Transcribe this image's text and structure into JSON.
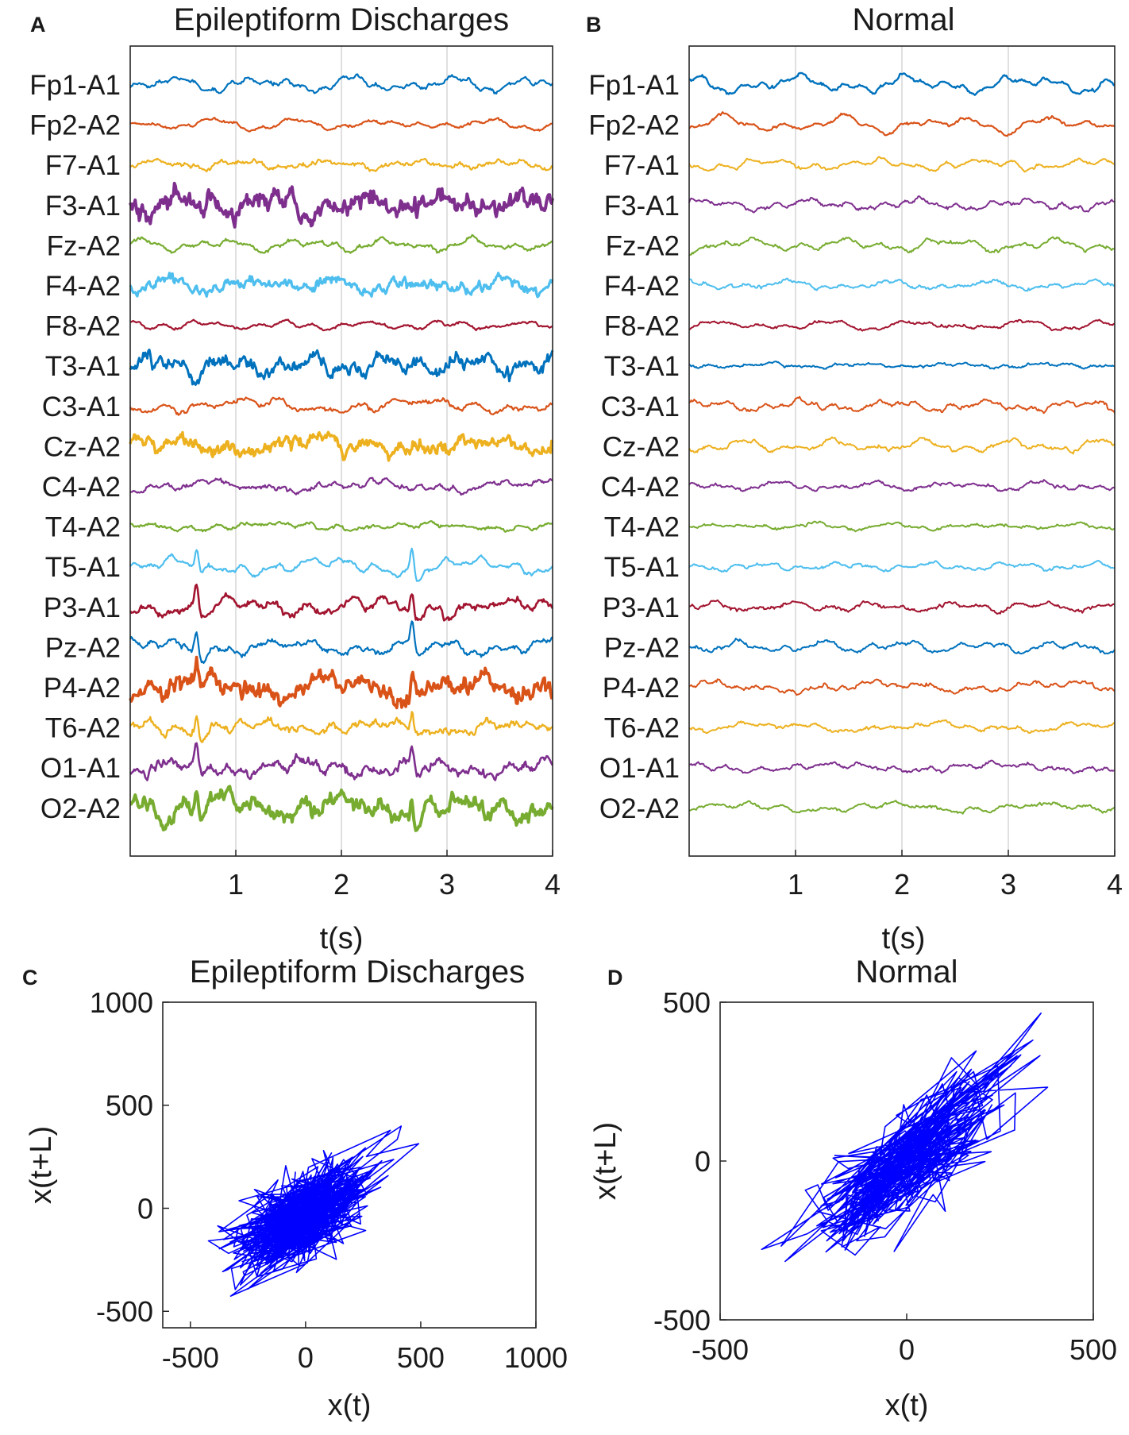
{
  "figure": {
    "panel_labels": [
      "A",
      "B",
      "C",
      "D"
    ]
  },
  "colors": {
    "axis": "#262626",
    "grid": "#d0d0d0",
    "scatter_line": "#0000ff",
    "channel_palette": [
      "#0072bd",
      "#d95319",
      "#edb120",
      "#7e2f8e",
      "#77ac30",
      "#4dbeee",
      "#a2142f"
    ]
  },
  "chart_data": [
    {
      "id": "A",
      "type": "line",
      "title": "Epileptiform Discharges",
      "xlabel": "t(s)",
      "ylabel": "",
      "xlim": [
        0,
        4
      ],
      "xticks": [
        "1",
        "2",
        "3",
        "4"
      ],
      "grid": "vertical",
      "channels": [
        "Fp1-A1",
        "Fp2-A2",
        "F7-A1",
        "F3-A1",
        "Fz-A2",
        "F4-A2",
        "F8-A2",
        "T3-A1",
        "C3-A1",
        "Cz-A2",
        "C4-A2",
        "T4-A2",
        "T5-A1",
        "P3-A1",
        "Pz-A2",
        "P4-A2",
        "T6-A2",
        "O1-A1",
        "O2-A2"
      ],
      "channel_amplitude": [
        1.0,
        0.7,
        0.55,
        1.5,
        0.8,
        0.9,
        0.55,
        1.2,
        0.9,
        1.0,
        0.8,
        0.5,
        1.1,
        1.0,
        1.0,
        1.4,
        0.9,
        1.1,
        1.6
      ],
      "channel_noise": [
        0.4,
        0.3,
        0.5,
        2.2,
        0.4,
        1.2,
        0.3,
        1.6,
        0.5,
        1.4,
        0.5,
        0.4,
        0.4,
        0.8,
        0.6,
        1.8,
        0.8,
        1.0,
        1.8
      ],
      "channel_stroke": [
        2.2,
        2.2,
        2.2,
        4.0,
        2.2,
        3.2,
        2.2,
        3.0,
        2.2,
        3.5,
        2.2,
        2.2,
        2.2,
        2.6,
        2.2,
        3.8,
        2.4,
        2.6,
        4.0
      ],
      "spike_times_s": [
        0.63,
        2.67
      ],
      "spike_channels": [
        "T5-A1",
        "P3-A1",
        "Pz-A2",
        "P4-A2",
        "T6-A2",
        "O1-A1",
        "O2-A2"
      ]
    },
    {
      "id": "B",
      "type": "line",
      "title": "Normal",
      "xlabel": "t(s)",
      "ylabel": "",
      "xlim": [
        0,
        4
      ],
      "xticks": [
        "1",
        "2",
        "3",
        "4"
      ],
      "grid": "vertical",
      "channels": [
        "Fp1-A1",
        "Fp2-A2",
        "F7-A1",
        "F3-A1",
        "Fz-A2",
        "F4-A2",
        "F8-A2",
        "T3-A1",
        "C3-A1",
        "Cz-A2",
        "C4-A2",
        "T4-A2",
        "T5-A1",
        "P3-A1",
        "Pz-A2",
        "P4-A2",
        "T6-A2",
        "O1-A1",
        "O2-A2"
      ],
      "channel_amplitude": [
        1.1,
        1.1,
        0.7,
        0.7,
        0.8,
        0.6,
        0.6,
        0.3,
        0.7,
        0.8,
        0.6,
        0.4,
        0.5,
        0.6,
        0.7,
        0.7,
        0.6,
        0.6,
        0.6
      ],
      "channel_noise": [
        0.35,
        0.3,
        0.3,
        0.4,
        0.4,
        0.35,
        0.3,
        0.3,
        0.4,
        0.4,
        0.35,
        0.3,
        0.3,
        0.4,
        0.4,
        0.4,
        0.35,
        0.35,
        0.35
      ],
      "channel_stroke": [
        2.4,
        2.2,
        2.0,
        2.0,
        2.0,
        2.0,
        2.0,
        2.0,
        2.0,
        2.0,
        2.0,
        2.0,
        2.0,
        2.0,
        2.0,
        2.0,
        2.0,
        2.0,
        2.0
      ],
      "spike_times_s": [],
      "spike_channels": []
    },
    {
      "id": "C",
      "type": "scatter",
      "title": "Epileptiform Discharges",
      "xlabel": "x(t)",
      "ylabel": "x(t+L)",
      "xlim": [
        -620,
        1000
      ],
      "ylim": [
        -580,
        1000
      ],
      "xticks": [
        -500,
        0,
        500,
        1000
      ],
      "yticks": [
        -500,
        0,
        500,
        1000
      ],
      "center": [
        -20,
        -40
      ],
      "spread": [
        210,
        190
      ],
      "correlation": 0.6,
      "n_points": 700,
      "grid": "off"
    },
    {
      "id": "D",
      "type": "scatter",
      "title": "Normal",
      "xlabel": "x(t)",
      "ylabel": "x(t+L)",
      "xlim": [
        -500,
        500
      ],
      "ylim": [
        -500,
        500
      ],
      "xticks": [
        -500,
        0,
        500
      ],
      "yticks": [
        -500,
        0,
        500
      ],
      "center": [
        10,
        0
      ],
      "spread": [
        170,
        170
      ],
      "correlation": 0.75,
      "n_points": 420,
      "grid": "off"
    }
  ]
}
